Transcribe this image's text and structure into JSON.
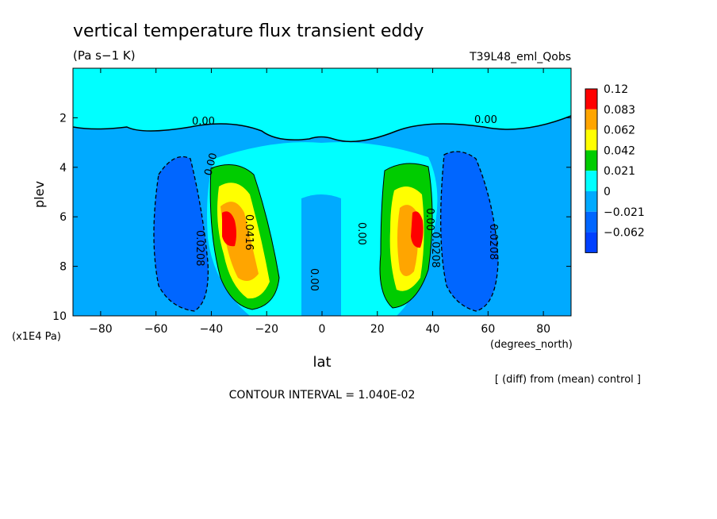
{
  "chart_data": {
    "type": "heatmap",
    "title": "vertical temperature flux transient eddy",
    "units": "(Pa s−1 K)",
    "run_label": "T39L48_eml_Qobs",
    "xlabel": "lat",
    "x_units": "(degrees_north)",
    "ylabel": "plev",
    "y_units": "(x1E4 Pa)",
    "xlim": [
      -90,
      90
    ],
    "ylim": [
      10,
      0
    ],
    "x_ticks": [
      -80,
      -60,
      -40,
      -20,
      0,
      20,
      40,
      60,
      80
    ],
    "y_ticks": [
      2,
      4,
      6,
      8,
      10
    ],
    "x_tick_labels": [
      "−80",
      "−60",
      "−40",
      "−20",
      "0",
      "20",
      "40",
      "60",
      "80"
    ],
    "y_tick_labels": [
      "2",
      "4",
      "6",
      "8",
      "10"
    ],
    "note": "[ (diff) from (mean) control ]",
    "contour_interval": "CONTOUR INTERVAL = 1.040E-02",
    "colorbar": {
      "levels": [
        "0.12",
        "0.083",
        "0.062",
        "0.042",
        "0.021",
        "0",
        "−0.021",
        "−0.062"
      ],
      "colors": [
        "#ff0000",
        "#ffa500",
        "#ffff00",
        "#00cc00",
        "#00ffff",
        "#00aaff",
        "#0066ff",
        "#0040ff"
      ]
    },
    "contour_labels": [
      "0.00",
      "0.00",
      "0.00",
      "0.0208",
      "0.0416",
      "0.00",
      "0.00",
      "0.00",
      "0.0208",
      "0.0208"
    ],
    "features": [
      {
        "lat": -33,
        "plev": 6.4,
        "value": 0.12
      },
      {
        "lat": 33,
        "plev": 6.4,
        "value": 0.12
      },
      {
        "lat": -50,
        "plev": 7.0,
        "value": -0.031
      },
      {
        "lat": 55,
        "plev": 6.6,
        "value": -0.031
      }
    ]
  }
}
